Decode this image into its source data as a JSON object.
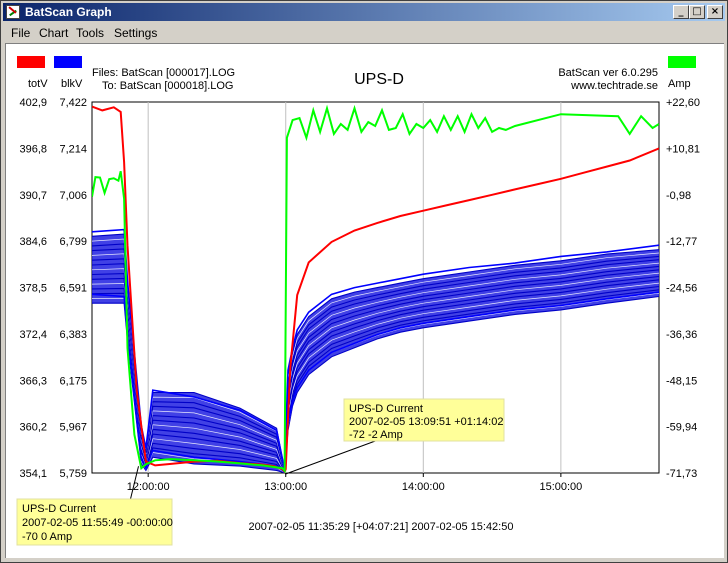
{
  "window": {
    "title": "BatScan Graph",
    "minimize_glyph": "_",
    "maximize_glyph": "□",
    "close_glyph": "×"
  },
  "menu": [
    "File",
    "Chart",
    "Tools",
    "Settings"
  ],
  "header": {
    "legend_left": [
      {
        "label": "totV",
        "color": "#ff0000"
      },
      {
        "label": "blkV",
        "color": "#0000ff"
      }
    ],
    "legend_right": {
      "label": "Amp",
      "color": "#00ff00"
    },
    "files_line1": "Files: BatScan [000017].LOG",
    "files_line2": "To: BatScan [000018].LOG",
    "chart_title": "UPS-D",
    "version_line1": "BatScan ver 6.0.295",
    "version_line2": "www.techtrade.se"
  },
  "chart_data": {
    "type": "line",
    "title": "UPS-D",
    "x_range": [
      "2007-02-05 11:35:29",
      "2007-02-05 15:42:50"
    ],
    "x_ticks": [
      "12:00:00",
      "13:00:00",
      "14:00:00",
      "15:00:00"
    ],
    "x_tick_minutes": [
      720,
      780,
      840,
      900
    ],
    "x_range_minutes": [
      695.5,
      942.8
    ],
    "y_left_totV_ticks": [
      "402,9",
      "396,8",
      "390,7",
      "384,6",
      "378,5",
      "372,4",
      "366,3",
      "360,2",
      "354,1"
    ],
    "y_left_blkV_ticks": [
      "7,422",
      "7,214",
      "7,006",
      "6,799",
      "6,591",
      "6,383",
      "6,175",
      "5,967",
      "5,759"
    ],
    "y_right_amp_ticks": [
      "+22,60",
      "+10,81",
      "-0,98",
      "-12,77",
      "-24,56",
      "-36,36",
      "-48,15",
      "-59,94",
      "-71,73"
    ],
    "totV_range": [
      354.1,
      402.9
    ],
    "blkV_range": [
      5.759,
      7.422
    ],
    "amp_range": [
      -71.73,
      22.6
    ],
    "grid": true,
    "series": [
      {
        "name": "totV",
        "color": "#ff0000",
        "x": [
          695.5,
          700,
          705,
          708,
          709.5,
          711,
          715,
          719,
          723,
          730,
          740,
          750,
          760,
          770,
          775,
          778.5,
          779.5,
          780,
          782,
          785,
          790,
          800,
          810,
          820,
          830,
          840,
          850,
          860,
          870,
          880,
          890,
          900,
          910,
          920,
          930,
          942.8
        ],
        "y": [
          402.3,
          401.8,
          402.2,
          401.6,
          395,
          384,
          365,
          355.6,
          355.1,
          355.3,
          355.6,
          355.7,
          355.4,
          355.2,
          355.0,
          354.6,
          354.3,
          354.6,
          368,
          377.5,
          381.8,
          384.5,
          386.0,
          387.0,
          387.9,
          388.6,
          389.3,
          390.0,
          390.7,
          391.4,
          392.1,
          392.8,
          393.6,
          394.4,
          395.2,
          396.8
        ]
      },
      {
        "name": "Amp",
        "color": "#00ff00",
        "x": [
          695.5,
          697,
          699,
          701,
          703,
          705,
          707,
          708,
          709.5,
          711,
          714,
          717,
          719,
          723,
          730,
          740,
          750,
          760,
          770,
          778.5,
          779.5,
          780.5,
          783,
          786,
          789,
          792,
          795,
          798,
          801,
          804,
          807,
          810,
          813,
          816,
          819,
          822,
          825,
          828,
          831,
          834,
          837,
          840,
          843,
          846,
          849,
          852,
          855,
          858,
          861,
          864,
          867,
          870,
          873,
          876,
          880,
          900,
          925,
          930,
          935,
          940,
          942.8
        ],
        "y": [
          -1.5,
          3.5,
          3.4,
          -0.5,
          3.0,
          3.2,
          2.6,
          5.0,
          -2.0,
          -40,
          -62,
          -70.5,
          -69.5,
          -68.5,
          -68.2,
          -68.5,
          -68.8,
          -69.3,
          -69.8,
          -70.5,
          -71.2,
          13.5,
          18.0,
          18.5,
          13.5,
          20.5,
          15.0,
          21.0,
          14.5,
          17.0,
          15.5,
          21.0,
          15.0,
          17.5,
          16.5,
          20.5,
          15.5,
          16.0,
          19.5,
          14.5,
          17.0,
          16.0,
          18.0,
          15.0,
          19.0,
          15.5,
          19.0,
          15.0,
          19.5,
          16.0,
          18.5,
          15.0,
          16.0,
          15.5,
          16.5,
          19.5,
          19.0,
          14.5,
          19.0,
          16.0,
          17.0
        ]
      },
      {
        "name": "blkV",
        "color": "#0000ff",
        "x": [
          695.5,
          709.5,
          711,
          717,
          719,
          722,
          740,
          760,
          776,
          779.5,
          781,
          783,
          785,
          790,
          800,
          810,
          820,
          830,
          840,
          860,
          880,
          900,
          920,
          942.8
        ],
        "y_top": [
          6.82,
          6.83,
          6.6,
          5.95,
          5.85,
          6.12,
          6.12,
          6.05,
          5.96,
          5.77,
          6.2,
          6.3,
          6.38,
          6.46,
          6.54,
          6.57,
          6.59,
          6.61,
          6.63,
          6.66,
          6.69,
          6.71,
          6.74,
          6.76
        ],
        "y_bottom": [
          6.52,
          6.52,
          6.35,
          5.8,
          5.77,
          5.83,
          5.8,
          5.79,
          5.77,
          5.76,
          5.95,
          6.06,
          6.12,
          6.2,
          6.28,
          6.32,
          6.36,
          6.39,
          6.41,
          6.44,
          6.47,
          6.49,
          6.52,
          6.55
        ],
        "y_low_string": [
          6.56,
          6.55,
          6.38,
          5.82,
          5.78,
          5.86,
          5.83,
          5.81,
          5.79,
          5.765,
          5.98,
          6.08,
          6.14,
          6.22,
          6.3,
          6.34,
          6.38,
          6.41,
          6.43,
          6.46,
          6.49,
          6.51,
          6.54,
          6.57
        ],
        "y_high_string": [
          6.84,
          6.85,
          6.62,
          5.97,
          5.87,
          6.13,
          6.1,
          6.04,
          5.95,
          5.775,
          6.22,
          6.32,
          6.4,
          6.48,
          6.56,
          6.59,
          6.61,
          6.63,
          6.65,
          6.68,
          6.7,
          6.73,
          6.75,
          6.78
        ]
      }
    ]
  },
  "annotations": {
    "start": {
      "line1": "UPS-D  Current",
      "line2": "2007-02-05 11:55:49  -00:00:00",
      "line3": "-70  0  Amp",
      "x_minute": 715.8,
      "amp_value": -70
    },
    "cursor": {
      "line1": "UPS-D  Current",
      "line2": "2007-02-05 13:09:51  +01:14:02",
      "line3": "-72  -2  Amp",
      "x_minute": 779.8,
      "amp_value": -72
    }
  },
  "footer": {
    "range_text": "2007-02-05 11:35:29  [+04:07:21]  2007-02-05 15:42:50"
  }
}
